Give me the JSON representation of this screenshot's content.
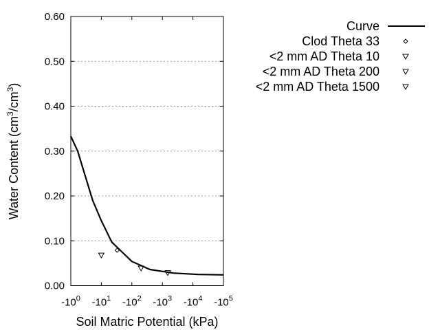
{
  "chart_data": {
    "type": "scatter",
    "title": "",
    "xlabel": "Soil Matric Potential (kPa)",
    "ylabel_parts": [
      "Water Content (cm",
      "3",
      "/cm",
      "3",
      ")"
    ],
    "x_scale": "log",
    "xlim": [
      1,
      100000
    ],
    "ylim": [
      0,
      0.6
    ],
    "x_ticks": [
      {
        "value": 1,
        "base": "-10",
        "exp": "0"
      },
      {
        "value": 10,
        "base": "-10",
        "exp": "1"
      },
      {
        "value": 100,
        "base": "-10",
        "exp": "2"
      },
      {
        "value": 1000,
        "base": "-10",
        "exp": "3"
      },
      {
        "value": 10000,
        "base": "-10",
        "exp": "4"
      },
      {
        "value": 100000,
        "base": "-10",
        "exp": "5"
      }
    ],
    "y_ticks": [
      {
        "value": 0,
        "label": "0.00"
      },
      {
        "value": 0.1,
        "label": "0.10"
      },
      {
        "value": 0.2,
        "label": "0.20"
      },
      {
        "value": 0.3,
        "label": "0.30"
      },
      {
        "value": 0.4,
        "label": "0.40"
      },
      {
        "value": 0.5,
        "label": "0.50"
      },
      {
        "value": 0.6,
        "label": "0.60"
      }
    ],
    "grid": "horizontal dotted",
    "legend_placement": "right",
    "series": [
      {
        "name": "Curve",
        "kind": "line",
        "color": "#000000",
        "x": [
          1,
          1.68,
          5.2,
          9.8,
          22,
          100,
          390,
          2300,
          14800,
          100000
        ],
        "y": [
          0.333,
          0.3,
          0.19,
          0.146,
          0.097,
          0.054,
          0.036,
          0.028,
          0.025,
          0.024
        ]
      },
      {
        "name": "Clod Theta 33",
        "kind": "diamond",
        "x": [
          33
        ],
        "y": [
          0.079
        ]
      },
      {
        "name": "<2 mm AD Theta 10",
        "kind": "triangle-down",
        "x": [
          10
        ],
        "y": [
          0.068
        ]
      },
      {
        "name": "<2 mm AD Theta 200",
        "kind": "triangle-down",
        "x": [
          200
        ],
        "y": [
          0.039
        ]
      },
      {
        "name": "<2 mm AD Theta 1500",
        "kind": "triangle-down",
        "x": [
          1500
        ],
        "y": [
          0.029
        ]
      }
    ]
  }
}
